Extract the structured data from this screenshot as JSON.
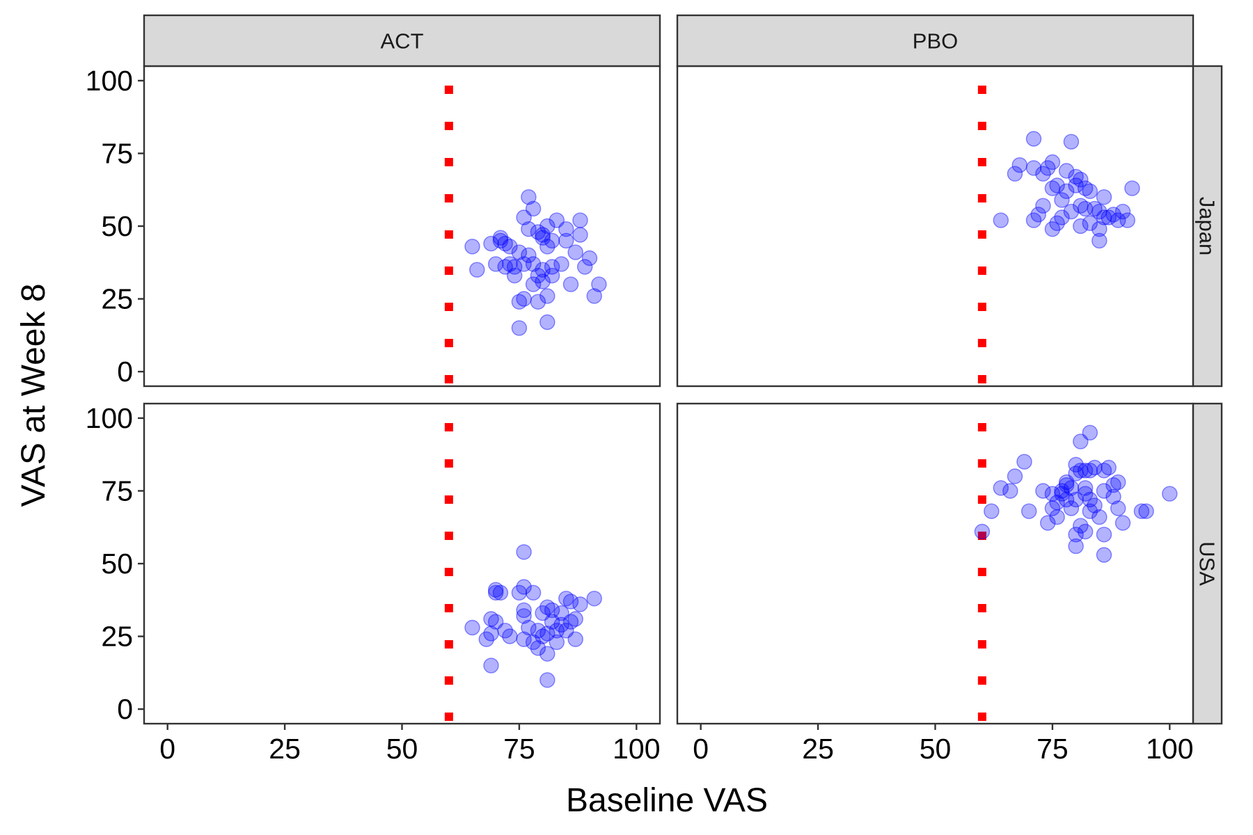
{
  "chart_data": {
    "type": "scatter",
    "title": "",
    "xlabel": "Baseline VAS",
    "ylabel": "VAS at Week 8",
    "xlim": [
      -5,
      105
    ],
    "ylim": [
      -5,
      105
    ],
    "x_ticks": [
      "0",
      "25",
      "50",
      "75",
      "100"
    ],
    "y_ticks": [
      "0",
      "25",
      "50",
      "75",
      "100"
    ],
    "x_tick_values": [
      0,
      25,
      50,
      75,
      100
    ],
    "y_tick_values": [
      0,
      25,
      50,
      75,
      100
    ],
    "reference_line_x": 60,
    "grid": false,
    "legend": "none",
    "columns": [
      "ACT",
      "PBO"
    ],
    "rows": [
      "Japan",
      "USA"
    ],
    "colors": {
      "point_fill": "#0000ff",
      "point_stroke": "#0000ff",
      "reference_line": "#ff0000",
      "strip_background": "#d9d9d9",
      "panel_border": "#333333"
    },
    "panels": [
      {
        "column": "ACT",
        "row": "Japan",
        "points": [
          [
            65,
            43
          ],
          [
            66,
            35
          ],
          [
            69,
            44
          ],
          [
            70,
            37
          ],
          [
            71,
            45
          ],
          [
            71,
            46
          ],
          [
            72,
            44
          ],
          [
            72,
            36
          ],
          [
            73,
            43
          ],
          [
            73,
            37
          ],
          [
            74,
            36
          ],
          [
            74,
            33
          ],
          [
            75,
            41
          ],
          [
            75,
            24
          ],
          [
            75,
            15
          ],
          [
            76,
            37
          ],
          [
            76,
            53
          ],
          [
            76,
            25
          ],
          [
            77,
            60
          ],
          [
            77,
            49
          ],
          [
            77,
            40
          ],
          [
            78,
            56
          ],
          [
            78,
            30
          ],
          [
            78,
            37
          ],
          [
            79,
            48
          ],
          [
            79,
            33
          ],
          [
            79,
            24
          ],
          [
            80,
            47
          ],
          [
            80,
            46
          ],
          [
            80,
            31
          ],
          [
            80,
            35
          ],
          [
            81,
            43
          ],
          [
            81,
            50
          ],
          [
            81,
            26
          ],
          [
            81,
            17
          ],
          [
            82,
            36
          ],
          [
            82,
            33
          ],
          [
            82,
            45
          ],
          [
            83,
            52
          ],
          [
            84,
            37
          ],
          [
            85,
            45
          ],
          [
            85,
            49
          ],
          [
            86,
            30
          ],
          [
            87,
            41
          ],
          [
            88,
            47
          ],
          [
            88,
            52
          ],
          [
            89,
            36
          ],
          [
            90,
            39
          ],
          [
            91,
            26
          ],
          [
            92,
            30
          ]
        ]
      },
      {
        "column": "PBO",
        "row": "Japan",
        "points": [
          [
            64,
            52
          ],
          [
            67,
            68
          ],
          [
            68,
            71
          ],
          [
            71,
            80
          ],
          [
            71,
            70
          ],
          [
            71,
            52
          ],
          [
            72,
            54
          ],
          [
            73,
            68
          ],
          [
            73,
            57
          ],
          [
            74,
            70
          ],
          [
            75,
            72
          ],
          [
            75,
            63
          ],
          [
            75,
            49
          ],
          [
            76,
            64
          ],
          [
            76,
            51
          ],
          [
            77,
            59
          ],
          [
            77,
            53
          ],
          [
            78,
            69
          ],
          [
            78,
            62
          ],
          [
            79,
            79
          ],
          [
            79,
            55
          ],
          [
            80,
            67
          ],
          [
            80,
            64
          ],
          [
            81,
            66
          ],
          [
            81,
            57
          ],
          [
            81,
            50
          ],
          [
            82,
            63
          ],
          [
            82,
            56
          ],
          [
            83,
            62
          ],
          [
            83,
            51
          ],
          [
            84,
            56
          ],
          [
            85,
            55
          ],
          [
            85,
            49
          ],
          [
            85,
            45
          ],
          [
            86,
            60
          ],
          [
            86,
            53
          ],
          [
            87,
            53
          ],
          [
            88,
            54
          ],
          [
            89,
            52
          ],
          [
            90,
            55
          ],
          [
            91,
            52
          ],
          [
            92,
            63
          ]
        ]
      },
      {
        "column": "ACT",
        "row": "USA",
        "points": [
          [
            65,
            28
          ],
          [
            68,
            24
          ],
          [
            69,
            26
          ],
          [
            69,
            31
          ],
          [
            69,
            15
          ],
          [
            70,
            40
          ],
          [
            70,
            41
          ],
          [
            70,
            30
          ],
          [
            71,
            40
          ],
          [
            72,
            27
          ],
          [
            73,
            25
          ],
          [
            75,
            40
          ],
          [
            76,
            54
          ],
          [
            76,
            42
          ],
          [
            76,
            34
          ],
          [
            76,
            32
          ],
          [
            76,
            24
          ],
          [
            77,
            28
          ],
          [
            78,
            40
          ],
          [
            78,
            23
          ],
          [
            79,
            27
          ],
          [
            79,
            21
          ],
          [
            80,
            33
          ],
          [
            80,
            25
          ],
          [
            81,
            35
          ],
          [
            81,
            19
          ],
          [
            81,
            26
          ],
          [
            81,
            10
          ],
          [
            82,
            34
          ],
          [
            82,
            30
          ],
          [
            83,
            27
          ],
          [
            83,
            23
          ],
          [
            84,
            33
          ],
          [
            84,
            29
          ],
          [
            85,
            27
          ],
          [
            85,
            38
          ],
          [
            86,
            37
          ],
          [
            86,
            30
          ],
          [
            87,
            24
          ],
          [
            87,
            31
          ],
          [
            88,
            36
          ],
          [
            91,
            38
          ]
        ]
      },
      {
        "column": "PBO",
        "row": "USA",
        "points": [
          [
            60,
            61
          ],
          [
            62,
            68
          ],
          [
            64,
            76
          ],
          [
            66,
            75
          ],
          [
            67,
            80
          ],
          [
            69,
            85
          ],
          [
            70,
            68
          ],
          [
            73,
            75
          ],
          [
            74,
            64
          ],
          [
            75,
            74
          ],
          [
            75,
            69
          ],
          [
            76,
            71
          ],
          [
            76,
            66
          ],
          [
            77,
            75
          ],
          [
            77,
            74
          ],
          [
            78,
            78
          ],
          [
            78,
            72
          ],
          [
            78,
            77
          ],
          [
            79,
            76
          ],
          [
            79,
            69
          ],
          [
            80,
            81
          ],
          [
            80,
            84
          ],
          [
            80,
            72
          ],
          [
            80,
            60
          ],
          [
            80,
            56
          ],
          [
            81,
            82
          ],
          [
            81,
            63
          ],
          [
            81,
            92
          ],
          [
            82,
            82
          ],
          [
            82,
            76
          ],
          [
            82,
            74
          ],
          [
            82,
            61
          ],
          [
            83,
            95
          ],
          [
            83,
            82
          ],
          [
            83,
            72
          ],
          [
            83,
            68
          ],
          [
            84,
            83
          ],
          [
            84,
            70
          ],
          [
            85,
            66
          ],
          [
            86,
            75
          ],
          [
            86,
            82
          ],
          [
            86,
            60
          ],
          [
            86,
            53
          ],
          [
            87,
            83
          ],
          [
            88,
            73
          ],
          [
            88,
            77
          ],
          [
            89,
            78
          ],
          [
            89,
            69
          ],
          [
            90,
            64
          ],
          [
            94,
            68
          ],
          [
            95,
            68
          ],
          [
            100,
            74
          ]
        ]
      }
    ]
  }
}
